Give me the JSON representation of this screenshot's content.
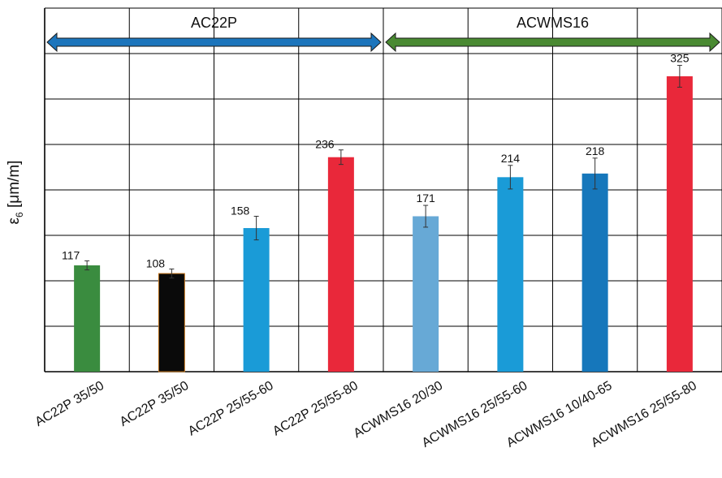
{
  "chart_data": {
    "type": "bar",
    "ylabel_symbol": "ε",
    "ylabel_subscript": "6",
    "ylabel_unit": "[μm/m]",
    "categories": [
      "AC22P 35/50",
      "AC22P 35/50",
      "AC22P 25/55-60",
      "AC22P 25/55-80",
      "ACWMS16 20/30",
      "ACWMS16 25/55-60",
      "ACWMS16 10/40-65",
      "ACWMS16 25/55-80"
    ],
    "values": [
      117,
      108,
      158,
      236,
      171,
      214,
      218,
      325
    ],
    "error": [
      5,
      5,
      13,
      8,
      12,
      13,
      17,
      12
    ],
    "value_labels": [
      "117",
      "108",
      "158",
      "236",
      "171",
      "214",
      "218",
      "325"
    ],
    "colors": [
      "#3a8c3f",
      "#0a0a0a",
      "#1a9bd7",
      "#e9283a",
      "#67a9d6",
      "#1a9bd7",
      "#1677bb",
      "#e9283a"
    ],
    "ylim": [
      0,
      400
    ],
    "grid": true,
    "groups": [
      {
        "label": "AC22P",
        "from": 0,
        "to": 3,
        "color": "#1c75bc"
      },
      {
        "label": "ACWMS16",
        "from": 4,
        "to": 7,
        "color": "#4a8a32"
      }
    ]
  }
}
